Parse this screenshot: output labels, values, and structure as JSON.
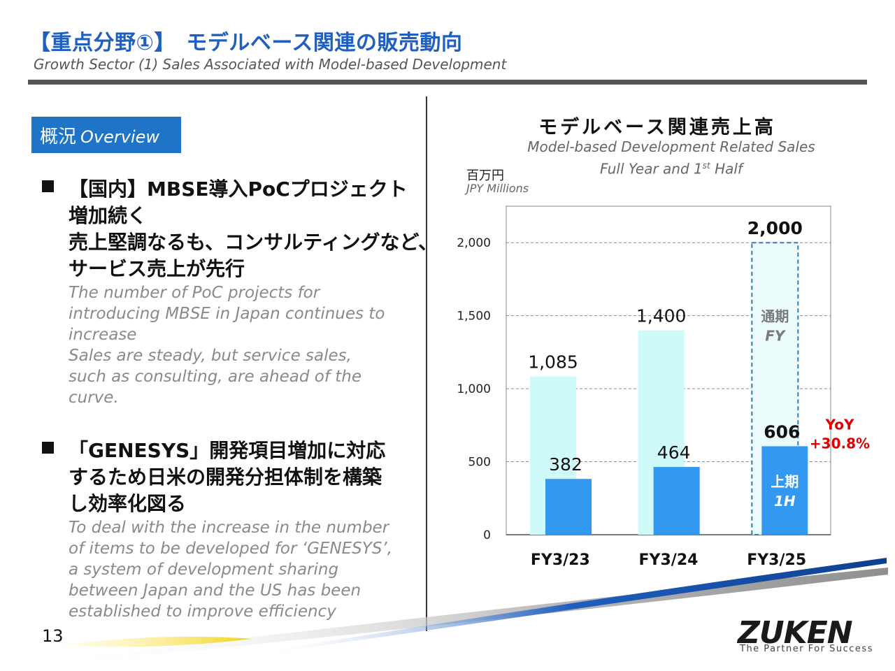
{
  "header": {
    "title_ja": "【重点分野①】　モデルベース関連の販売動向",
    "title_en": "Growth Sector (1) Sales Associated with Model-based Development"
  },
  "overview": {
    "tag_ja": "概況",
    "tag_en": "Overview",
    "bullets": [
      {
        "heading": [
          "【国内】MBSE導入PoCプロジェクト",
          "増加続く",
          "売上堅調なるも、コンサルティングなど、",
          "サービス売上が先行"
        ],
        "body": [
          "The number of PoC projects for",
          "introducing MBSE in Japan continues to",
          "increase",
          "Sales are steady, but service sales,",
          "such as consulting, are ahead of the",
          "curve."
        ]
      },
      {
        "heading": [
          "「GENESYS」開発項目増加に対応",
          "するため日米の開発分担体制を構築",
          "し効率化図る"
        ],
        "body": [
          "To deal with the increase in the number",
          "of items to be developed for ‘GENESYS’,",
          "a system of development sharing",
          "between Japan and the US has been",
          "established to improve efficiency"
        ]
      }
    ]
  },
  "chart_header": {
    "title_ja": "モデルベース関連売上高",
    "subtitle_line1": "Model-based Development Related Sales",
    "subtitle_line2_pre": "Full Year and 1",
    "subtitle_line2_sup": "st",
    "subtitle_line2_post": " Half",
    "unit_ja": "百万円",
    "unit_en": "JPY Millions"
  },
  "chart_data": {
    "type": "bar",
    "categories": [
      "FY3/23",
      "FY3/24",
      "FY3/25"
    ],
    "series": [
      {
        "values": [
          1085,
          1400,
          2000
        ],
        "color": "#cffafa",
        "labels": [
          "1,085",
          "1,400",
          "2,000"
        ]
      },
      {
        "values": [
          382,
          464,
          606
        ],
        "color": "#3399f0",
        "labels": [
          "382",
          "464",
          "606"
        ]
      }
    ],
    "ylim": [
      0,
      2250
    ],
    "yticks": [
      0,
      500,
      1000,
      1500,
      2000
    ],
    "ytick_labels": [
      "0",
      "500",
      "1,000",
      "1,500",
      "2,000"
    ],
    "grid": true,
    "annotations": {
      "fy_ja": "通期",
      "fy_en": "FY",
      "h1_ja": "上期",
      "h1_en": "1H",
      "yoy_label": "YoY",
      "yoy_value": "+30.8%"
    }
  },
  "footer": {
    "page_number": "13",
    "logo": "ZUKEN",
    "tagline": "The Partner For Success"
  },
  "colors": {
    "accent_blue": "#1f74c8",
    "title_blue": "#1f5fbf",
    "fy_bar": "#cffafa",
    "h1_bar": "#3399f0",
    "yoy_red": "#e00000"
  }
}
